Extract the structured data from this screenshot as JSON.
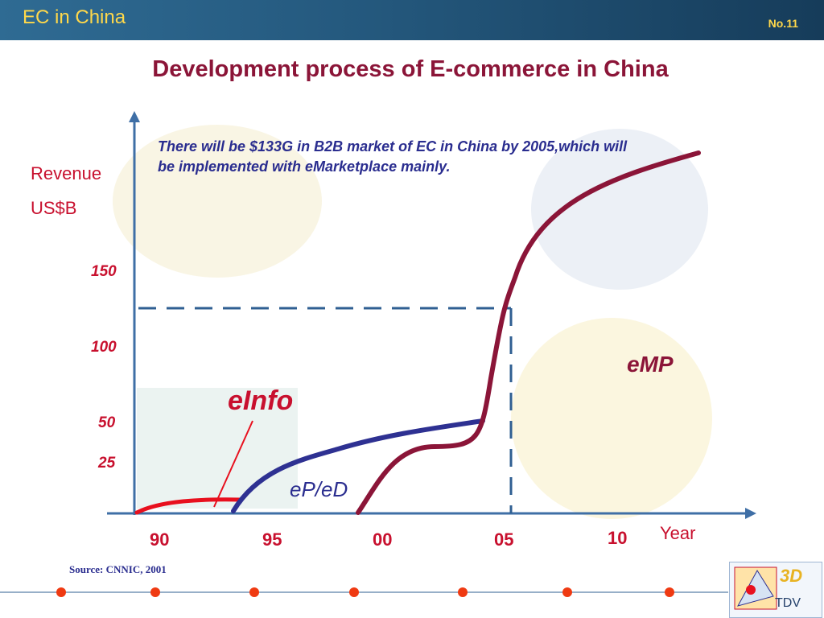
{
  "header": {
    "title": "EC in China",
    "slide_no": "No.11"
  },
  "title": "Development process of E-commerce in China",
  "annotation": "There will be $133G in B2B market of EC in China by 2005,which will be implemented with eMarketplace mainly.",
  "source": "Source: CNNIC, 2001",
  "logo": {
    "mark": "3D",
    "text": "TDV"
  },
  "colors": {
    "einfo": "#e8101e",
    "eped": "#2e3192",
    "emp": "#8b1538",
    "axis": "#3f6fa6",
    "title": "#8b1538"
  },
  "chart_data": {
    "type": "line",
    "ylabel": [
      "Revenue",
      "US$B"
    ],
    "xlabel": "Year",
    "y_ticks": [
      "25",
      "50",
      "100",
      "150"
    ],
    "x_ticks": [
      "90",
      "95",
      "00",
      "05",
      "10"
    ],
    "reference": {
      "year": "05",
      "value": "133"
    },
    "series": [
      {
        "name": "eInfo",
        "label_text": "eInfo",
        "x": [
          1990,
          1991,
          1993,
          1995
        ],
        "y": [
          0,
          3,
          5,
          6
        ]
      },
      {
        "name": "eP/eD",
        "label_text": "eP/eD",
        "x": [
          1994.5,
          1997,
          2000,
          2003,
          2004.5
        ],
        "y": [
          0,
          20,
          35,
          41,
          43
        ]
      },
      {
        "name": "eMP",
        "label_text": "eMP",
        "x": [
          1999,
          2001,
          2003.5,
          2004.5,
          2005,
          2006,
          2010
        ],
        "y": [
          0,
          25,
          30,
          60,
          133,
          180,
          240
        ]
      }
    ]
  }
}
